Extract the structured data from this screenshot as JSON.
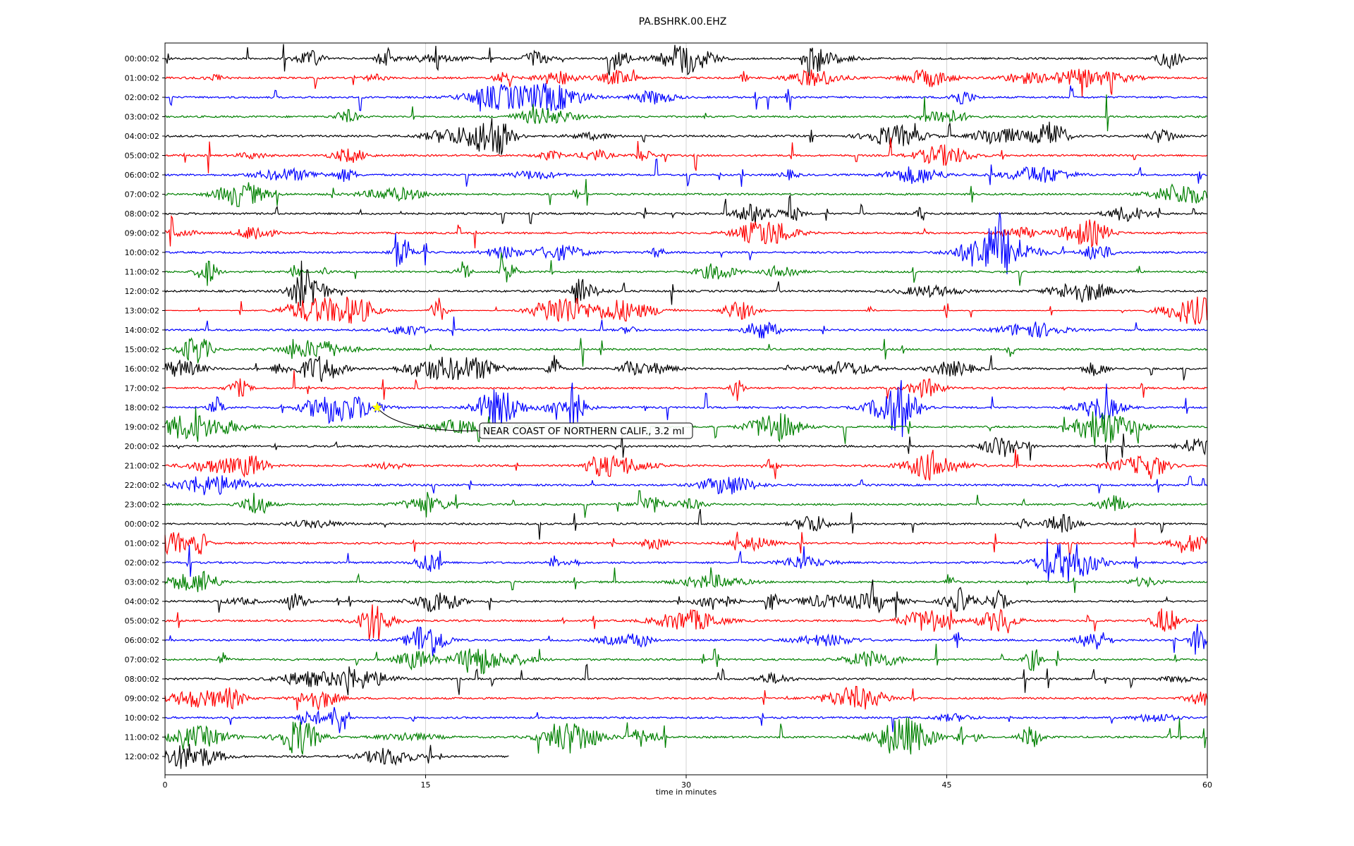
{
  "chart_data": {
    "type": "line",
    "title": "PA.BSHRK.00.EHZ",
    "xlabel": "time in minutes",
    "ylabel": "",
    "xlim": [
      0,
      60
    ],
    "x_ticks": [
      "0",
      "15",
      "30",
      "45",
      "60"
    ],
    "grid": "vertical",
    "trace_colors": [
      "#000000",
      "#ff0000",
      "#0000ff",
      "#008000"
    ],
    "rows": [
      "00:00:02",
      "01:00:02",
      "02:00:02",
      "03:00:02",
      "04:00:02",
      "05:00:02",
      "06:00:02",
      "07:00:02",
      "08:00:02",
      "09:00:02",
      "10:00:02",
      "11:00:02",
      "12:00:02",
      "13:00:02",
      "14:00:02",
      "15:00:02",
      "16:00:02",
      "17:00:02",
      "18:00:02",
      "19:00:02",
      "20:00:02",
      "21:00:02",
      "22:00:02",
      "23:00:02",
      "00:00:02",
      "01:00:02",
      "02:00:02",
      "03:00:02",
      "04:00:02",
      "05:00:02",
      "06:00:02",
      "07:00:02",
      "08:00:02",
      "09:00:02",
      "10:00:02",
      "11:00:02",
      "12:00:02"
    ],
    "last_row_end_minute": 19.8,
    "event": {
      "label": "NEAR COAST OF NORTHERN CALIF., 3.2 ml",
      "row": 18,
      "minute": 12.2,
      "marker_color": "#ffff00"
    }
  }
}
